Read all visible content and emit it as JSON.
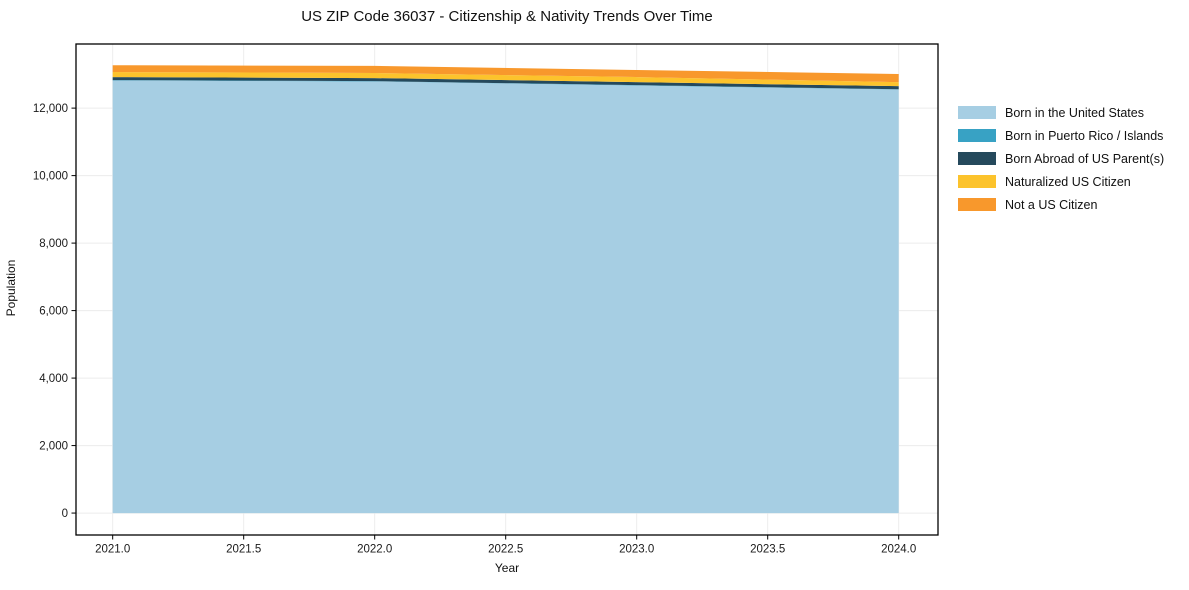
{
  "title": "US ZIP Code 36037 - Citizenship & Nativity Trends Over Time",
  "chart_data": {
    "type": "area",
    "stacked": true,
    "title": "US ZIP Code 36037 - Citizenship & Nativity Trends Over Time",
    "xlabel": "Year",
    "ylabel": "Population",
    "x": [
      2021,
      2022,
      2023,
      2024
    ],
    "series": [
      {
        "name": "Born in the United States",
        "color": "#a6cee3",
        "values": [
          12820,
          12790,
          12670,
          12550
        ]
      },
      {
        "name": "Born in Puerto Rico / Islands",
        "color": "#38a2c4",
        "values": [
          10,
          10,
          10,
          10
        ]
      },
      {
        "name": "Born Abroad of US Parent(s)",
        "color": "#25495c",
        "values": [
          90,
          90,
          90,
          90
        ]
      },
      {
        "name": "Naturalized US Citizen",
        "color": "#fcc32c",
        "values": [
          150,
          150,
          150,
          120
        ]
      },
      {
        "name": "Not a US Citizen",
        "color": "#f8982c",
        "values": [
          200,
          210,
          210,
          240
        ]
      }
    ],
    "x_ticks": {
      "values": [
        2021.0,
        2021.5,
        2022.0,
        2022.5,
        2023.0,
        2023.5,
        2024.0
      ],
      "labels": [
        "2021.0",
        "2021.5",
        "2022.0",
        "2022.5",
        "2023.0",
        "2023.5",
        "2024.0"
      ]
    },
    "y_ticks": {
      "values": [
        0,
        2000,
        4000,
        6000,
        8000,
        10000,
        12000
      ],
      "labels": [
        "0",
        "2,000",
        "4,000",
        "6,000",
        "8,000",
        "10,000",
        "12,000"
      ]
    },
    "xlim": [
      2020.86,
      2024.15
    ],
    "ylim": [
      -650,
      13900
    ],
    "grid": true,
    "grid_color": "#ececec",
    "spine_color": "#000000",
    "tick_label_color": "#1a1a1a",
    "legend_position": "right-outside"
  }
}
